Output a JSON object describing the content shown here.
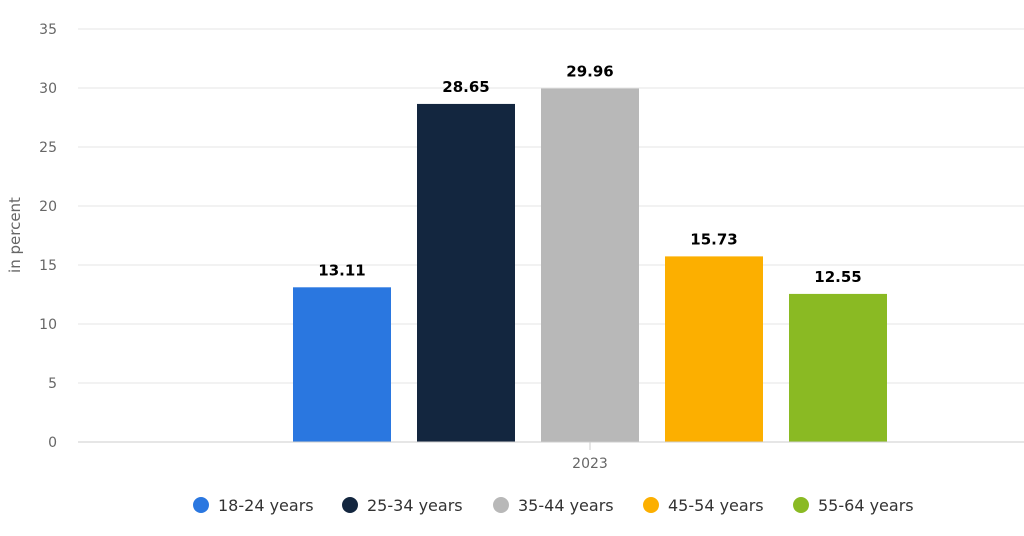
{
  "chart_data": {
    "type": "bar",
    "ylabel": "in percent",
    "categories": [
      "2023"
    ],
    "ylim": [
      0,
      35
    ],
    "yticks": [
      0,
      5,
      10,
      15,
      20,
      25,
      30,
      35
    ],
    "grid": true,
    "legend_position": "bottom",
    "series": [
      {
        "name": "18-24 years",
        "color": "#2a77e0",
        "values": [
          13.11
        ],
        "label": "13.11"
      },
      {
        "name": "25-34 years",
        "color": "#13263f",
        "values": [
          28.65
        ],
        "label": "28.65"
      },
      {
        "name": "35-44 years",
        "color": "#b8b8b8",
        "values": [
          29.96
        ],
        "label": "29.96"
      },
      {
        "name": "45-54 years",
        "color": "#fcaf00",
        "values": [
          15.73
        ],
        "label": "15.73"
      },
      {
        "name": "55-64 years",
        "color": "#8aba23",
        "values": [
          12.55
        ],
        "label": "12.55"
      }
    ]
  }
}
